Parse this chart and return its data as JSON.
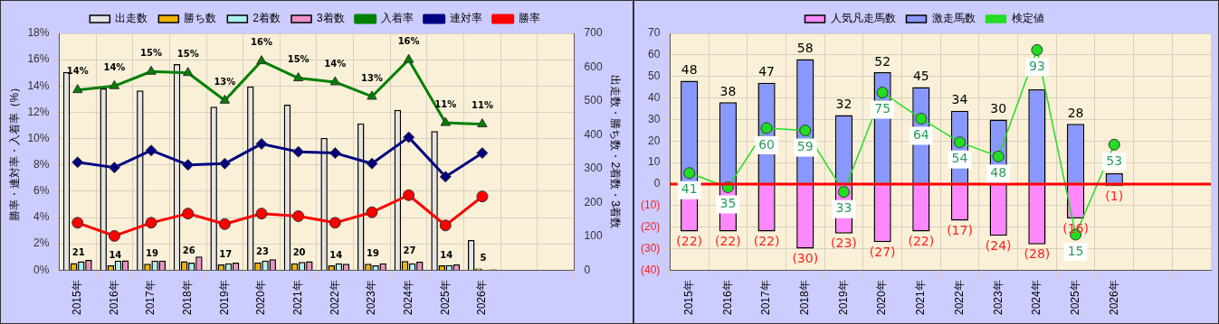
{
  "chart_data": [
    {
      "type": "bar",
      "categories": [
        "2015年",
        "2016年",
        "2017年",
        "2018年",
        "2019年",
        "2020年",
        "2021年",
        "2022年",
        "2023年",
        "2024年",
        "2025年",
        "2026年",
        null,
        null
      ],
      "ylabel": "勝率・連対率・入着率（%）",
      "y2label": "出走数・勝ち数・2着数・3着数",
      "ylim": [
        0,
        18
      ],
      "yticks": [
        {
          "value": 0,
          "label": "0%"
        },
        {
          "value": 2,
          "label": "2%"
        },
        {
          "value": 4,
          "label": "4%"
        },
        {
          "value": 6,
          "label": "6%"
        },
        {
          "value": 8,
          "label": "8%"
        },
        {
          "value": 10,
          "label": "10%"
        },
        {
          "value": 12,
          "label": "12%"
        },
        {
          "value": 14,
          "label": "14%"
        },
        {
          "value": 16,
          "label": "16%"
        },
        {
          "value": 18,
          "label": "18%"
        }
      ],
      "y2lim": [
        0,
        700
      ],
      "y2ticks": [
        0,
        100,
        200,
        300,
        400,
        500,
        600,
        700
      ],
      "grid": true,
      "legend": "top",
      "series": [
        {
          "name": "出走数",
          "axis": "y2",
          "color": "#e4e4e4",
          "values": [
            586,
            537,
            531,
            609,
            483,
            543,
            489,
            391,
            434,
            474,
            411,
            89,
            null,
            null
          ]
        },
        {
          "name": "勝ち数",
          "axis": "y2",
          "color": "#f0b400",
          "values": [
            21,
            14,
            19,
            26,
            17,
            23,
            20,
            14,
            19,
            27,
            14,
            5,
            null,
            null
          ],
          "value_labels": [
            "21",
            "14",
            "19",
            "26",
            "17",
            "23",
            "20",
            "14",
            "19",
            "27",
            "14",
            "5",
            null,
            null
          ]
        },
        {
          "name": "2着数",
          "axis": "y2",
          "color": "#aef0f0",
          "values": [
            26,
            28,
            28,
            22,
            20,
            28,
            24,
            20,
            14,
            20,
            15,
            null,
            null,
            null
          ]
        },
        {
          "name": "3着数",
          "axis": "y2",
          "color": "#f090c8",
          "values": [
            30,
            29,
            28,
            40,
            22,
            32,
            26,
            19,
            20,
            25,
            17,
            2,
            null,
            null
          ]
        },
        {
          "name": "入着率",
          "type": "line",
          "axis": "y",
          "color": "#008000",
          "marker": "triangle",
          "values": [
            13.7,
            14.0,
            15.1,
            15.0,
            12.9,
            15.9,
            14.6,
            14.3,
            13.2,
            16.0,
            11.2,
            11.1,
            null,
            null
          ],
          "value_labels": [
            "14%",
            "14%",
            "15%",
            "15%",
            "13%",
            "16%",
            "15%",
            "14%",
            "13%",
            "16%",
            "11%",
            "11%",
            null,
            null
          ]
        },
        {
          "name": "連対率",
          "type": "line",
          "axis": "y",
          "color": "#000080",
          "marker": "diamond",
          "values": [
            8.2,
            7.8,
            9.1,
            8.0,
            8.1,
            9.6,
            9.0,
            8.9,
            8.1,
            10.1,
            7.1,
            8.9,
            null,
            null
          ]
        },
        {
          "name": "勝率",
          "type": "line",
          "axis": "y",
          "color": "#ff0000",
          "marker": "circle",
          "values": [
            3.6,
            2.6,
            3.6,
            4.3,
            3.5,
            4.3,
            4.1,
            3.6,
            4.4,
            5.7,
            3.4,
            5.6,
            null,
            null
          ]
        }
      ]
    },
    {
      "type": "bar",
      "categories": [
        "2015年",
        "2016年",
        "2017年",
        "2018年",
        "2019年",
        "2020年",
        "2021年",
        "2022年",
        "2023年",
        "2024年",
        "2025年",
        "2026年",
        null,
        null
      ],
      "ylim": [
        -40,
        70
      ],
      "yticks": [
        {
          "value": -40,
          "label": "(40)"
        },
        {
          "value": -30,
          "label": "(30)"
        },
        {
          "value": -20,
          "label": "(20)"
        },
        {
          "value": -10,
          "label": "(10)"
        },
        0,
        10,
        20,
        30,
        40,
        50,
        60,
        70
      ],
      "y2lim": [
        0,
        100
      ],
      "tick_labels": "xy",
      "stacked": true,
      "grid": true,
      "legend": "top",
      "ref_lines": [
        {
          "axis": "y",
          "value": 0,
          "color": "#ff0000"
        }
      ],
      "series": [
        {
          "name": "人気凡走馬数",
          "axis": "y",
          "color": "#ff88ff",
          "values": [
            -22,
            -22,
            -22,
            -30,
            -23,
            -27,
            -22,
            -17,
            -24,
            -28,
            -16,
            -1,
            null,
            null
          ],
          "value_labels": [
            "(22)",
            "(22)",
            "(22)",
            "(30)",
            "(23)",
            "(27)",
            "(22)",
            "(17)",
            "(24)",
            "(28)",
            "(16)",
            "(1)",
            null,
            null
          ]
        },
        {
          "name": "激走馬数",
          "axis": "y",
          "color": "#8898ff",
          "values": [
            48,
            38,
            47,
            58,
            32,
            52,
            45,
            34,
            30,
            44,
            28,
            5,
            null,
            null
          ],
          "value_labels": [
            "48",
            "38",
            "47",
            "58",
            "32",
            "52",
            "45",
            "34",
            "30",
            null,
            "28",
            null,
            null,
            null
          ]
        },
        {
          "name": "検定値",
          "type": "line",
          "axis": "y2",
          "color": "#22dd22",
          "marker": "circle",
          "values": [
            41,
            35,
            60,
            59,
            33,
            75,
            64,
            54,
            48,
            93,
            15,
            53,
            null,
            null
          ],
          "data_labels": true
        }
      ]
    }
  ]
}
